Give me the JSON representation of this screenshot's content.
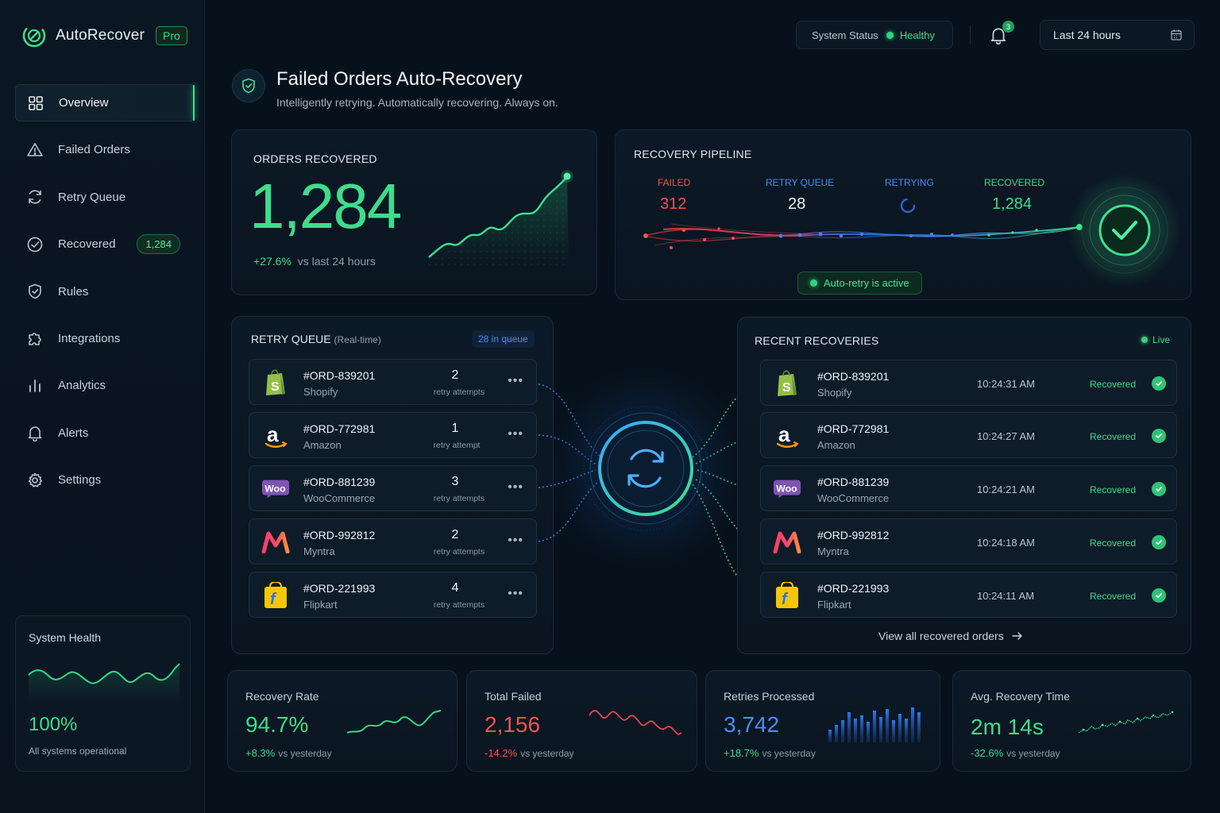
{
  "brand": {
    "name": "AutoRecover",
    "badge": "Pro"
  },
  "sidebar": {
    "items": [
      {
        "label": "Overview",
        "icon": "grid-icon",
        "active": true
      },
      {
        "label": "Failed Orders",
        "icon": "alert-triangle-icon"
      },
      {
        "label": "Retry Queue",
        "icon": "refresh-icon"
      },
      {
        "label": "Recovered",
        "icon": "check-circle-icon",
        "badge": "1,284"
      },
      {
        "label": "Rules",
        "icon": "shield-icon"
      },
      {
        "label": "Integrations",
        "icon": "puzzle-icon"
      },
      {
        "label": "Analytics",
        "icon": "bar-chart-icon"
      },
      {
        "label": "Alerts",
        "icon": "bell-icon"
      },
      {
        "label": "Settings",
        "icon": "gear-icon"
      }
    ],
    "health": {
      "title": "System Health",
      "value": "100%",
      "caption": "All systems operational"
    }
  },
  "topbar": {
    "status_label": "System Status",
    "status_value": "Healthy",
    "notifications_count": "3",
    "range": "Last 24 hours"
  },
  "header": {
    "title": "Failed Orders Auto-Recovery",
    "subtitle": "Intelligently retrying. Automatically recovering. Always on."
  },
  "orders_recovered": {
    "title": "ORDERS RECOVERED",
    "value": "1,284",
    "delta": "+27.6%",
    "delta_caption": "vs last 24 hours"
  },
  "pipeline": {
    "title": "RECOVERY PIPELINE",
    "failed_label": "FAILED",
    "failed_value": "312",
    "queue_label": "RETRY QUEUE",
    "queue_value": "28",
    "retrying_label": "RETRYING",
    "recovered_label": "RECOVERED",
    "recovered_value": "1,284",
    "auto_retry": "Auto-retry is active"
  },
  "retry_queue": {
    "title": "RETRY QUEUE",
    "title_suffix": "(Real-time)",
    "count": "28 in queue",
    "rows": [
      {
        "id": "#ORD-839201",
        "source": "Shopify",
        "attempts": "2",
        "attempt_label": "retry attempts"
      },
      {
        "id": "#ORD-772981",
        "source": "Amazon",
        "attempts": "1",
        "attempt_label": "retry attempt"
      },
      {
        "id": "#ORD-881239",
        "source": "WooCommerce",
        "attempts": "3",
        "attempt_label": "retry attempts"
      },
      {
        "id": "#ORD-992812",
        "source": "Myntra",
        "attempts": "2",
        "attempt_label": "retry attempts"
      },
      {
        "id": "#ORD-221993",
        "source": "Flipkart",
        "attempts": "4",
        "attempt_label": "retry attempts"
      }
    ]
  },
  "recent": {
    "title": "RECENT RECOVERIES",
    "live": "Live",
    "rows": [
      {
        "id": "#ORD-839201",
        "source": "Shopify",
        "time": "10:24:31 AM",
        "status": "Recovered"
      },
      {
        "id": "#ORD-772981",
        "source": "Amazon",
        "time": "10:24:27 AM",
        "status": "Recovered"
      },
      {
        "id": "#ORD-881239",
        "source": "WooCommerce",
        "time": "10:24:21 AM",
        "status": "Recovered"
      },
      {
        "id": "#ORD-992812",
        "source": "Myntra",
        "time": "10:24:18 AM",
        "status": "Recovered"
      },
      {
        "id": "#ORD-221993",
        "source": "Flipkart",
        "time": "10:24:11 AM",
        "status": "Recovered"
      }
    ],
    "view_all": "View all recovered orders"
  },
  "stats": [
    {
      "title": "Recovery Rate",
      "value": "94.7%",
      "delta": "+8.3%",
      "caption": "vs yesterday",
      "color": "#3fdc8c"
    },
    {
      "title": "Total Failed",
      "value": "2,156",
      "delta": "-14.2%",
      "caption": "vs yesterday",
      "color": "#ef5350"
    },
    {
      "title": "Retries Processed",
      "value": "3,742",
      "delta": "+18.7%",
      "caption": "vs yesterday",
      "color": "#4d8cf0"
    },
    {
      "title": "Avg. Recovery Time",
      "value": "2m 14s",
      "delta": "-32.6%",
      "caption": "vs yesterday",
      "color": "#3fdc8c"
    }
  ],
  "colors": {
    "accent": "#3fdc8c",
    "danger": "#ef5350",
    "info": "#4d8cf0",
    "background": "#07111c"
  }
}
